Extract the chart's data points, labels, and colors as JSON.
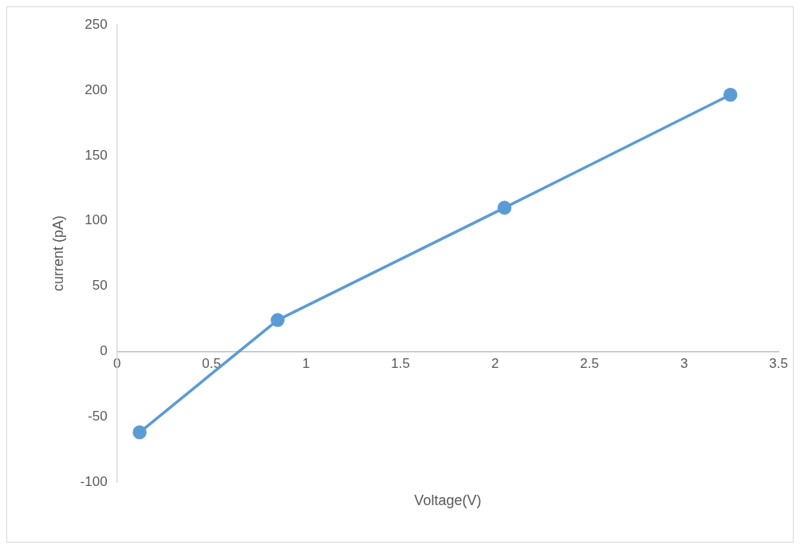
{
  "chart_data": {
    "type": "line",
    "xlabel": "Voltage(V)",
    "ylabel": "current (pA)",
    "x": [
      0.12,
      0.85,
      2.05,
      3.245
    ],
    "series": [
      {
        "color": "#5b9bd5",
        "values": [
          -62,
          24,
          110,
          196.5
        ]
      }
    ],
    "xlim": [
      0,
      3.5
    ],
    "xticks": [
      0,
      0.5,
      1,
      1.5,
      2,
      2.5,
      3,
      3.5
    ],
    "ylim": [
      -100,
      250
    ],
    "yticks": [
      -100,
      -50,
      0,
      50,
      100,
      150,
      200,
      250
    ],
    "grid": false,
    "legend": false,
    "marker": "circle",
    "line_style": "solid"
  }
}
